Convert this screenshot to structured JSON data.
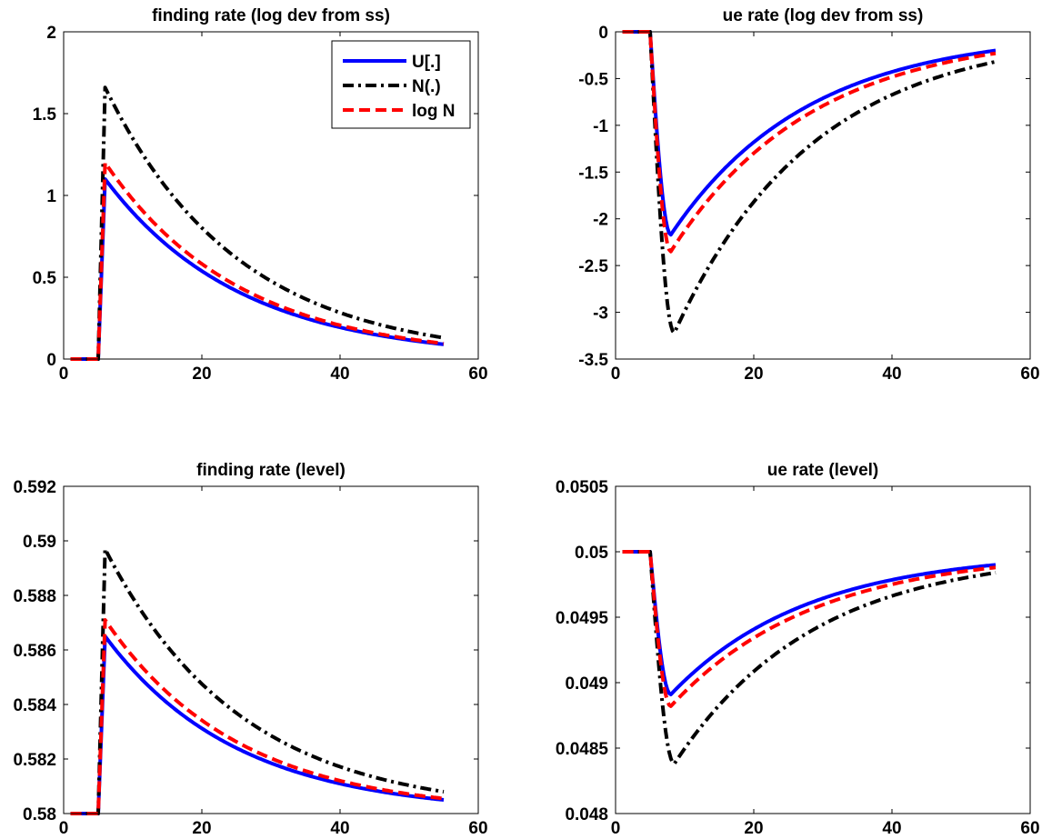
{
  "colors": {
    "U": "#0000ff",
    "N": "#000000",
    "logN": "#ff0000"
  },
  "chart_data": [
    {
      "type": "line",
      "title": "finding rate (log dev from ss)",
      "xlim": [
        0,
        60
      ],
      "ylim": [
        0,
        2
      ],
      "xticks": [
        "0",
        "20",
        "40",
        "60"
      ],
      "yticks": [
        "0",
        "0.5",
        "1",
        "1.5",
        "2"
      ],
      "grid": false,
      "legend": {
        "placement": "top-right",
        "entries": [
          "U[.]",
          "N(.)",
          "log N"
        ]
      },
      "series": [
        {
          "name": "U[.]",
          "style": "solid",
          "model": {
            "ss": 0,
            "peak": 1.1,
            "end": 0.09,
            "shock_start": 5,
            "trough_t": 6,
            "shape": "decay"
          }
        },
        {
          "name": "N(.)",
          "style": "dashdot",
          "model": {
            "ss": 0,
            "peak": 1.66,
            "end": 0.13,
            "shock_start": 5,
            "trough_t": 6,
            "shape": "decay"
          }
        },
        {
          "name": "log N",
          "style": "dashed",
          "model": {
            "ss": 0,
            "peak": 1.2,
            "end": 0.095,
            "shock_start": 5,
            "trough_t": 6,
            "shape": "decay"
          }
        }
      ]
    },
    {
      "type": "line",
      "title": "ue rate (log dev from ss)",
      "xlim": [
        0,
        60
      ],
      "ylim": [
        -3.5,
        0
      ],
      "xticks": [
        "0",
        "20",
        "40",
        "60"
      ],
      "yticks": [
        "-3.5",
        "-3",
        "-2.5",
        "-2",
        "-1.5",
        "-1",
        "-0.5",
        "0"
      ],
      "grid": false,
      "series": [
        {
          "name": "U[.]",
          "style": "solid",
          "model": {
            "ss": 0,
            "peak": -2.17,
            "end": -0.2,
            "shock_start": 5,
            "trough_t": 8,
            "shape": "hump"
          }
        },
        {
          "name": "N(.)",
          "style": "dashdot",
          "model": {
            "ss": 0,
            "peak": -3.22,
            "end": -0.32,
            "shock_start": 5,
            "trough_t": 8.5,
            "shape": "hump"
          }
        },
        {
          "name": "log N",
          "style": "dashed",
          "model": {
            "ss": 0,
            "peak": -2.35,
            "end": -0.23,
            "shock_start": 5,
            "trough_t": 8,
            "shape": "hump"
          }
        }
      ]
    },
    {
      "type": "line",
      "title": "finding rate (level)",
      "xlim": [
        0,
        60
      ],
      "ylim": [
        0.58,
        0.592
      ],
      "xticks": [
        "0",
        "20",
        "40",
        "60"
      ],
      "yticks": [
        "0.58",
        "0.582",
        "0.584",
        "0.586",
        "0.588",
        "0.59",
        "0.592"
      ],
      "grid": false,
      "series": [
        {
          "name": "U[.]",
          "style": "solid",
          "model": {
            "ss": 0.58,
            "peak": 0.5865,
            "end": 0.5805,
            "shock_start": 5,
            "trough_t": 6,
            "shape": "decay"
          }
        },
        {
          "name": "N(.)",
          "style": "dashdot",
          "model": {
            "ss": 0.58,
            "peak": 0.5897,
            "end": 0.5808,
            "shock_start": 5,
            "trough_t": 6,
            "shape": "decay"
          }
        },
        {
          "name": "log N",
          "style": "dashed",
          "model": {
            "ss": 0.58,
            "peak": 0.5871,
            "end": 0.58055,
            "shock_start": 5,
            "trough_t": 6,
            "shape": "decay"
          }
        }
      ]
    },
    {
      "type": "line",
      "title": "ue rate (level)",
      "xlim": [
        0,
        60
      ],
      "ylim": [
        0.048,
        0.0505
      ],
      "xticks": [
        "0",
        "20",
        "40",
        "60"
      ],
      "yticks": [
        "0.048",
        "0.0485",
        "0.049",
        "0.0495",
        "0.05",
        "0.0505"
      ],
      "grid": false,
      "series": [
        {
          "name": "U[.]",
          "style": "solid",
          "model": {
            "ss": 0.05,
            "peak": 0.04891,
            "end": 0.0499,
            "shock_start": 5,
            "trough_t": 8,
            "shape": "hump"
          }
        },
        {
          "name": "N(.)",
          "style": "dashdot",
          "model": {
            "ss": 0.05,
            "peak": 0.04838,
            "end": 0.04984,
            "shock_start": 5,
            "trough_t": 8.5,
            "shape": "hump"
          }
        },
        {
          "name": "log N",
          "style": "dashed",
          "model": {
            "ss": 0.05,
            "peak": 0.04882,
            "end": 0.04988,
            "shock_start": 5,
            "trough_t": 8,
            "shape": "hump"
          }
        }
      ]
    }
  ]
}
